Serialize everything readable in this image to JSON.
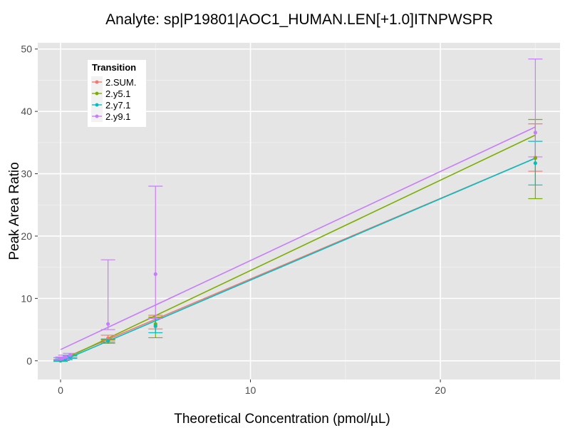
{
  "chart_data": {
    "type": "line",
    "title": "Analyte: sp|P19801|AOC1_HUMAN.LEN[+1.0]ITNPWSPR",
    "xlabel": "Theoretical Concentration (pmol/µL)",
    "ylabel": "Peak Area Ratio",
    "xlim": [
      -1.2,
      26.3
    ],
    "ylim": [
      -3,
      51
    ],
    "x_ticks": [
      0,
      10,
      20
    ],
    "y_ticks": [
      0,
      10,
      20,
      30,
      40,
      50
    ],
    "grid": true,
    "legend": {
      "title": "Transition",
      "position": "top-left"
    },
    "series": [
      {
        "name": "2.SUM.",
        "color": "#F8766D",
        "fit": [
          0,
          0.2,
          25,
          32.5
        ],
        "points": [
          {
            "x": 0,
            "y": 0.1,
            "lo": 0.0,
            "hi": 0.2
          },
          {
            "x": 0.1,
            "y": 0.2,
            "lo": 0.1,
            "hi": 0.3
          },
          {
            "x": 0.25,
            "y": 0.35,
            "lo": 0.2,
            "hi": 0.5
          },
          {
            "x": 0.5,
            "y": 0.6,
            "lo": 0.4,
            "hi": 0.8
          },
          {
            "x": 2.5,
            "y": 3.6,
            "lo": 3.3,
            "hi": 4.1
          },
          {
            "x": 5,
            "y": 5.5,
            "lo": 5.1,
            "hi": 7.3
          },
          {
            "x": 25,
            "y": 32.6,
            "lo": 30.4,
            "hi": 38.0
          }
        ]
      },
      {
        "name": "2.y5.1",
        "color": "#7CAE00",
        "fit": [
          0,
          0.0,
          25,
          36.2
        ],
        "points": [
          {
            "x": 0,
            "y": 0.0,
            "lo": -0.1,
            "hi": 0.1
          },
          {
            "x": 0.1,
            "y": 0.15,
            "lo": 0.05,
            "hi": 0.25
          },
          {
            "x": 0.25,
            "y": 0.3,
            "lo": 0.2,
            "hi": 0.45
          },
          {
            "x": 0.5,
            "y": 0.7,
            "lo": 0.5,
            "hi": 0.9
          },
          {
            "x": 2.5,
            "y": 3.1,
            "lo": 2.8,
            "hi": 3.4
          },
          {
            "x": 5,
            "y": 5.9,
            "lo": 3.7,
            "hi": 7.0
          },
          {
            "x": 25,
            "y": 32.5,
            "lo": 26.0,
            "hi": 38.7
          }
        ]
      },
      {
        "name": "2.y7.1",
        "color": "#00BFC4",
        "fit": [
          0,
          -0.1,
          25,
          32.5
        ],
        "points": [
          {
            "x": 0,
            "y": 0.05,
            "lo": -0.05,
            "hi": 0.15
          },
          {
            "x": 0.1,
            "y": 0.2,
            "lo": 0.1,
            "hi": 0.3
          },
          {
            "x": 0.25,
            "y": 0.35,
            "lo": 0.2,
            "hi": 0.5
          },
          {
            "x": 0.5,
            "y": 0.6,
            "lo": 0.4,
            "hi": 0.8
          },
          {
            "x": 2.5,
            "y": 3.2,
            "lo": 3.0,
            "hi": 3.5
          },
          {
            "x": 5,
            "y": 5.6,
            "lo": 4.5,
            "hi": 6.8
          },
          {
            "x": 25,
            "y": 31.7,
            "lo": 28.2,
            "hi": 35.2
          }
        ]
      },
      {
        "name": "2.y9.1",
        "color": "#C77CFF",
        "fit": [
          0,
          1.8,
          25,
          37.5
        ],
        "points": [
          {
            "x": 0,
            "y": 0.3,
            "lo": 0.1,
            "hi": 0.5
          },
          {
            "x": 0.1,
            "y": 0.4,
            "lo": 0.2,
            "hi": 0.6
          },
          {
            "x": 0.25,
            "y": 0.6,
            "lo": 0.3,
            "hi": 0.9
          },
          {
            "x": 0.5,
            "y": 0.9,
            "lo": 0.5,
            "hi": 1.2
          },
          {
            "x": 2.5,
            "y": 5.9,
            "lo": 5.0,
            "hi": 16.2
          },
          {
            "x": 5,
            "y": 13.9,
            "lo": 6.8,
            "hi": 28.0
          },
          {
            "x": 25,
            "y": 36.6,
            "lo": 32.7,
            "hi": 48.4
          }
        ]
      }
    ]
  }
}
